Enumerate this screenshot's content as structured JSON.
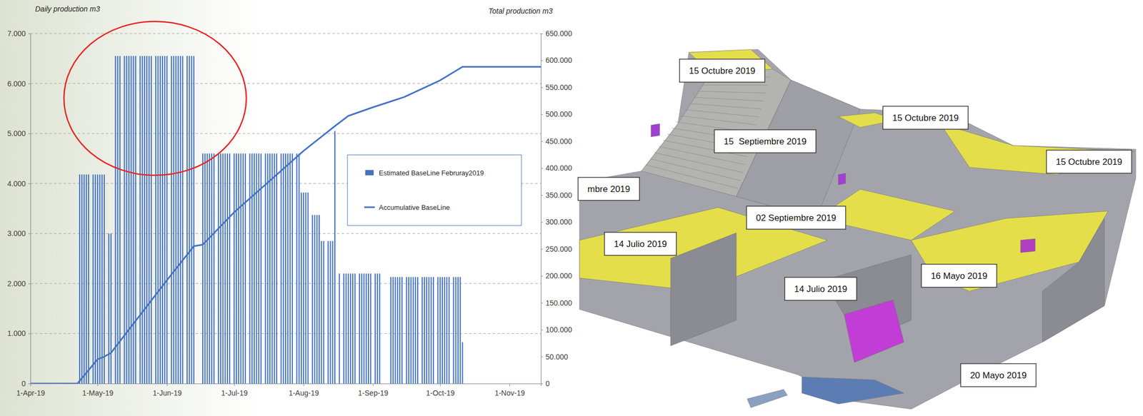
{
  "chart_data": {
    "type": "bar",
    "ylabel": "Daily production m3",
    "y2label": "Total production m3",
    "xlim": [
      "2019-04-01",
      "2019-11-15"
    ],
    "xticks": [
      {
        "value": "2019-04-01",
        "label": "1-Apr-19"
      },
      {
        "value": "2019-05-01",
        "label": "1-May-19"
      },
      {
        "value": "2019-06-01",
        "label": "1-Jun-19"
      },
      {
        "value": "2019-07-01",
        "label": "1-Jul-19"
      },
      {
        "value": "2019-08-01",
        "label": "1-Aug-19"
      },
      {
        "value": "2019-09-01",
        "label": "1-Sep-19"
      },
      {
        "value": "2019-10-01",
        "label": "1-Oct-19"
      },
      {
        "value": "2019-11-01",
        "label": "1-Nov-19"
      }
    ],
    "ylim": [
      0,
      7000
    ],
    "yticks": [
      0,
      {
        "value": 1000,
        "label": "1.000"
      },
      {
        "value": 2000,
        "label": "2.000"
      },
      {
        "value": 3000,
        "label": "3.000"
      },
      {
        "value": 4000,
        "label": "4.000"
      },
      {
        "value": 5000,
        "label": "5.000"
      },
      {
        "value": 6000,
        "label": "6.000"
      },
      {
        "value": 7000,
        "label": "7.000"
      }
    ],
    "y2lim": [
      0,
      650000
    ],
    "y2ticks": [
      0,
      {
        "value": 50000,
        "label": "50.000"
      },
      {
        "value": 100000,
        "label": "100.000"
      },
      {
        "value": 150000,
        "label": "150.000"
      },
      {
        "value": 200000,
        "label": "200.000"
      },
      {
        "value": 250000,
        "label": "250.000"
      },
      {
        "value": 300000,
        "label": "300.000"
      },
      {
        "value": 350000,
        "label": "350.000"
      },
      {
        "value": 400000,
        "label": "400.000"
      },
      {
        "value": 450000,
        "label": "450.000"
      },
      {
        "value": 500000,
        "label": "500.000"
      },
      {
        "value": 550000,
        "label": "550.000"
      },
      {
        "value": 600000,
        "label": "600.000"
      },
      {
        "value": 650000,
        "label": "650.000"
      }
    ],
    "grid": true,
    "legend": "right",
    "series": [
      {
        "name": "Estimated BaseLine Februray2019",
        "type": "bar",
        "color": "#4472c4",
        "x": [
          "2019-04-23",
          "2019-04-24",
          "2019-04-25",
          "2019-04-26",
          "2019-04-27",
          "2019-04-29",
          "2019-04-30",
          "2019-05-01",
          "2019-05-02",
          "2019-05-03",
          "2019-05-04",
          "2019-05-06",
          "2019-05-07",
          "2019-05-09",
          "2019-05-10",
          "2019-05-11",
          "2019-05-13",
          "2019-05-14",
          "2019-05-15",
          "2019-05-16",
          "2019-05-17",
          "2019-05-18",
          "2019-05-20",
          "2019-05-21",
          "2019-05-22",
          "2019-05-23",
          "2019-05-24",
          "2019-05-25",
          "2019-05-27",
          "2019-05-28",
          "2019-05-29",
          "2019-05-30",
          "2019-05-31",
          "2019-06-01",
          "2019-06-03",
          "2019-06-04",
          "2019-06-05",
          "2019-06-06",
          "2019-06-07",
          "2019-06-08",
          "2019-06-10",
          "2019-06-11",
          "2019-06-12",
          "2019-06-13",
          "2019-06-17",
          "2019-06-18",
          "2019-06-19",
          "2019-06-20",
          "2019-06-21",
          "2019-06-22",
          "2019-06-24",
          "2019-06-25",
          "2019-06-26",
          "2019-06-27",
          "2019-06-28",
          "2019-06-29",
          "2019-07-01",
          "2019-07-02",
          "2019-07-03",
          "2019-07-04",
          "2019-07-05",
          "2019-07-06",
          "2019-07-08",
          "2019-07-09",
          "2019-07-10",
          "2019-07-11",
          "2019-07-12",
          "2019-07-13",
          "2019-07-15",
          "2019-07-16",
          "2019-07-17",
          "2019-07-18",
          "2019-07-19",
          "2019-07-20",
          "2019-07-22",
          "2019-07-23",
          "2019-07-24",
          "2019-07-25",
          "2019-07-26",
          "2019-07-27",
          "2019-07-29",
          "2019-07-30",
          "2019-07-31",
          "2019-08-01",
          "2019-08-02",
          "2019-08-03",
          "2019-08-05",
          "2019-08-06",
          "2019-08-07",
          "2019-08-08",
          "2019-08-09",
          "2019-08-10",
          "2019-08-12",
          "2019-08-13",
          "2019-08-14",
          "2019-08-15",
          "2019-08-17",
          "2019-08-19",
          "2019-08-20",
          "2019-08-21",
          "2019-08-22",
          "2019-08-23",
          "2019-08-24",
          "2019-08-26",
          "2019-08-27",
          "2019-08-28",
          "2019-08-29",
          "2019-08-30",
          "2019-08-31",
          "2019-09-02",
          "2019-09-03",
          "2019-09-04",
          "2019-09-09",
          "2019-09-10",
          "2019-09-11",
          "2019-09-12",
          "2019-09-13",
          "2019-09-14",
          "2019-09-16",
          "2019-09-17",
          "2019-09-18",
          "2019-09-19",
          "2019-09-20",
          "2019-09-21",
          "2019-09-23",
          "2019-09-24",
          "2019-09-25",
          "2019-09-26",
          "2019-09-27",
          "2019-09-28",
          "2019-09-30",
          "2019-10-01",
          "2019-10-02",
          "2019-10-03",
          "2019-10-04",
          "2019-10-05",
          "2019-10-07",
          "2019-10-08",
          "2019-10-09",
          "2019-10-10",
          "2019-10-11"
        ],
        "values": [
          4180,
          4180,
          4180,
          4180,
          4180,
          4180,
          4180,
          4180,
          4180,
          4180,
          4180,
          3000,
          3000,
          6550,
          6550,
          6550,
          6550,
          6550,
          6550,
          6550,
          6550,
          6550,
          6550,
          6550,
          6550,
          6550,
          6550,
          6550,
          6550,
          6550,
          6550,
          6550,
          6550,
          6550,
          6550,
          6550,
          6550,
          6550,
          6550,
          6550,
          6550,
          6550,
          6550,
          6550,
          4600,
          4600,
          4600,
          4600,
          4600,
          4600,
          4600,
          4600,
          4600,
          4600,
          4600,
          4600,
          4600,
          4600,
          4600,
          4600,
          4600,
          4600,
          4600,
          4600,
          4600,
          4600,
          4600,
          4600,
          4600,
          4600,
          4600,
          4600,
          4600,
          4600,
          4600,
          4600,
          4600,
          4600,
          4600,
          4600,
          4600,
          4600,
          3820,
          3820,
          3820,
          3820,
          3370,
          3370,
          3370,
          3370,
          2850,
          2850,
          2850,
          2850,
          2850,
          5050,
          2200,
          2200,
          2200,
          2200,
          2200,
          2200,
          2200,
          2200,
          2200,
          2200,
          2200,
          2200,
          2200,
          2200,
          2200,
          2200,
          2130,
          2130,
          2130,
          2130,
          2130,
          2130,
          2130,
          2130,
          2130,
          2130,
          2130,
          2130,
          2130,
          2130,
          2130,
          2130,
          2130,
          2130,
          2130,
          2130,
          2130,
          2130,
          2130,
          2130,
          2130,
          2130,
          2130,
          2130,
          830
        ]
      },
      {
        "name": "Accumulative BaseLine",
        "type": "line",
        "color": "#4472c4",
        "axis": "y2",
        "x": [
          "2019-04-01",
          "2019-04-22",
          "2019-05-01",
          "2019-05-04",
          "2019-05-07",
          "2019-06-01",
          "2019-06-13",
          "2019-06-17",
          "2019-07-01",
          "2019-08-01",
          "2019-08-15",
          "2019-08-21",
          "2019-09-01",
          "2019-09-15",
          "2019-10-01",
          "2019-10-11",
          "2019-11-15"
        ],
        "values": [
          0,
          0,
          45000,
          50000,
          57000,
          192000,
          255000,
          258000,
          318000,
          432000,
          478000,
          497000,
          513000,
          532000,
          563000,
          588000,
          588000
        ]
      }
    ]
  },
  "model_labels": [
    "15 Octubre 2019",
    "15 Octubre 2019",
    "15  Septiembre 2019",
    "15 Octubre 2019",
    "mbre 2019",
    "02 Septiembre 2019",
    "14 Julio 2019",
    "14 Julio 2019",
    "16 Mayo 2019",
    "20 Mayo 2019"
  ]
}
